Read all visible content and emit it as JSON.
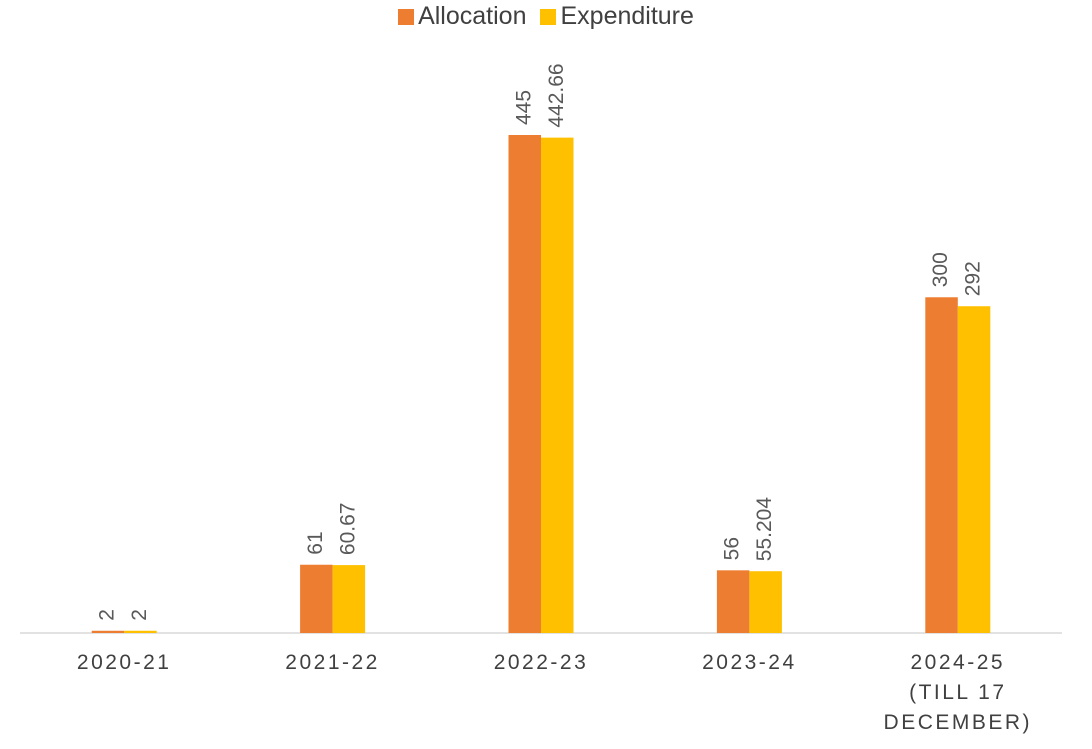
{
  "chart_data": {
    "type": "bar",
    "categories": [
      "2020-21",
      "2021-22",
      "2022-23",
      "2023-24",
      "2024-25 (TILL 17 DECEMBER)"
    ],
    "series": [
      {
        "name": "Allocation",
        "color": "#ED7D31",
        "values": [
          2,
          61,
          445,
          56,
          300
        ]
      },
      {
        "name": "Expenditure",
        "color": "#FFC000",
        "values": [
          2,
          60.67,
          442.66,
          55.204,
          292
        ]
      }
    ],
    "legend": "top"
  }
}
